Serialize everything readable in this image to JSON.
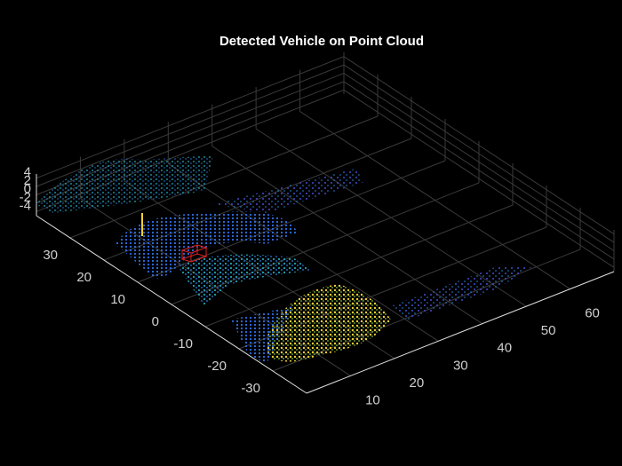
{
  "chart_data": {
    "type": "scatter3",
    "title": "Detected Vehicle on Point Cloud",
    "xlim": [
      0,
      70
    ],
    "ylim": [
      -40,
      40
    ],
    "zlim": [
      -5,
      5
    ],
    "xticks": [
      10,
      20,
      30,
      40,
      50,
      60
    ],
    "yticks": [
      -30,
      -20,
      -10,
      0,
      10,
      20,
      30
    ],
    "zticks": [
      -4,
      -2,
      0,
      2,
      4
    ],
    "grid": true
  }
}
